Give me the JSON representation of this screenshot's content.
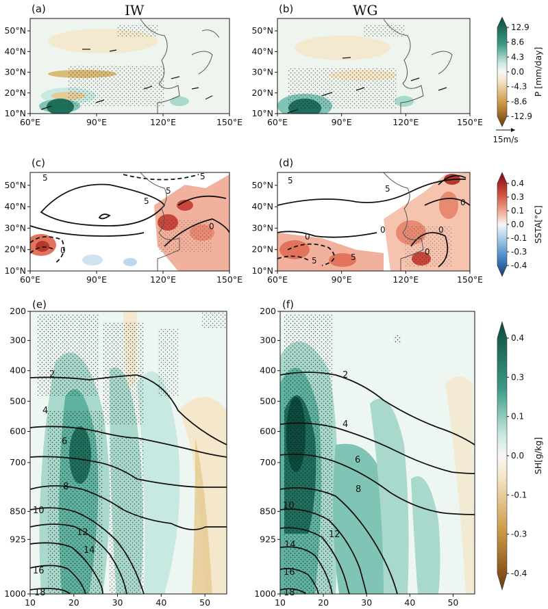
{
  "figure": {
    "colors": {
      "teal_dark": "#0b4a3c",
      "teal_mid": "#4aa896",
      "teal_light": "#c7e9e1",
      "tan_light": "#f4e6c6",
      "brown_dark": "#6b3a10",
      "red_dark": "#8c1018",
      "red_mid": "#e2745d",
      "blue_mid": "#6aa6d6",
      "land_line": "#555555",
      "contour": "#111111"
    }
  },
  "chart_data": [
    {
      "id": "a",
      "panel_label": "(a)",
      "title": "IW",
      "type": "heatmap",
      "field": "precipitation anomaly with wind vectors",
      "x_ticks": [
        "60°E",
        "90°E",
        "120°E",
        "150°E"
      ],
      "y_ticks": [
        "10°N",
        "20°N",
        "30°N",
        "40°N",
        "50°N"
      ],
      "xlim": [
        60,
        150
      ],
      "ylim": [
        10,
        56
      ],
      "features": [
        {
          "lon": 72,
          "lat": 23,
          "value": 12.9,
          "note": "wet core"
        },
        {
          "lon": 78,
          "lat": 15,
          "value": 8.6
        },
        {
          "lon": 87,
          "lat": 27,
          "value": -4.3,
          "note": "dry band"
        },
        {
          "lon": 80,
          "lat": 17,
          "value": -4.3
        },
        {
          "lon": 130,
          "lat": 15,
          "value": 4.3
        }
      ]
    },
    {
      "id": "b",
      "panel_label": "(b)",
      "title": "WG",
      "type": "heatmap",
      "field": "precipitation anomaly with wind vectors",
      "x_ticks": [
        "60°E",
        "90°E",
        "120°E",
        "150°E"
      ],
      "y_ticks": [
        "10°N",
        "20°N",
        "30°N",
        "40°N",
        "50°N"
      ],
      "xlim": [
        60,
        150
      ],
      "ylim": [
        10,
        56
      ],
      "features": [
        {
          "lon": 73,
          "lat": 18,
          "value": 12.9,
          "note": "wet core"
        },
        {
          "lon": 80,
          "lat": 13,
          "value": 8.6
        },
        {
          "lon": 117,
          "lat": 19,
          "value": 4.3
        }
      ]
    },
    {
      "id": "c",
      "panel_label": "(c)",
      "type": "heatmap",
      "field": "SST anomaly with contours",
      "x_ticks": [
        "60°E",
        "90°E",
        "120°E",
        "150°E"
      ],
      "y_ticks": [
        "10°N",
        "20°N",
        "30°N",
        "40°N",
        "50°N"
      ],
      "xlim": [
        60,
        150
      ],
      "ylim": [
        10,
        56
      ],
      "contour_labels": [
        "5",
        "5",
        "5",
        "0",
        "0",
        "5"
      ]
    },
    {
      "id": "d",
      "panel_label": "(d)",
      "type": "heatmap",
      "field": "SST anomaly with contours",
      "x_ticks": [
        "60°E",
        "90°E",
        "120°E",
        "150°E"
      ],
      "y_ticks": [
        "10°N",
        "20°N",
        "30°N",
        "40°N",
        "50°N"
      ],
      "xlim": [
        60,
        150
      ],
      "ylim": [
        10,
        56
      ],
      "contour_labels": [
        "5",
        "5",
        "0",
        "0",
        "0",
        "0",
        "0",
        "5",
        "5"
      ]
    },
    {
      "id": "e",
      "panel_label": "(e)",
      "type": "heatmap",
      "field": "specific humidity anomaly, latitude-pressure section",
      "x_ticks": [
        "10",
        "20",
        "30",
        "40",
        "50"
      ],
      "y_ticks": [
        "200",
        "300",
        "400",
        "500",
        "600",
        "700",
        "850",
        "925",
        "1000"
      ],
      "xlim": [
        10,
        55
      ],
      "ylim": [
        1000,
        200
      ],
      "contour_labels": [
        "2",
        "4",
        "6",
        "8",
        "10",
        "12",
        "14",
        "16",
        "18"
      ]
    },
    {
      "id": "f",
      "panel_label": "(f)",
      "type": "heatmap",
      "field": "specific humidity anomaly, latitude-pressure section",
      "x_ticks": [
        "10",
        "20",
        "30",
        "40",
        "50"
      ],
      "y_ticks": [
        "200",
        "300",
        "400",
        "500",
        "600",
        "700",
        "850",
        "925",
        "1000"
      ],
      "xlim": [
        10,
        55
      ],
      "ylim": [
        1000,
        200
      ],
      "contour_labels": [
        "2",
        "4",
        "6",
        "8",
        "10",
        "12",
        "14",
        "16",
        "18"
      ]
    }
  ],
  "colorbars": {
    "precip": {
      "label": "P [mm/day]",
      "ticks": [
        "12.9",
        "8.6",
        "4.3",
        "0.0",
        "-4.3",
        "-8.6",
        "-12.9"
      ],
      "vector_label": "15m/s"
    },
    "sst": {
      "label": "SSTA[°C]",
      "ticks": [
        "0.4",
        "0.3",
        "0.1",
        "0.0",
        "-0.1",
        "-0.3",
        "-0.4"
      ]
    },
    "sh": {
      "label": "SH[g/kg]",
      "ticks": [
        "0.4",
        "0.3",
        "0.1",
        "0.0",
        "-0.1",
        "-0.3",
        "-0.4"
      ]
    }
  }
}
